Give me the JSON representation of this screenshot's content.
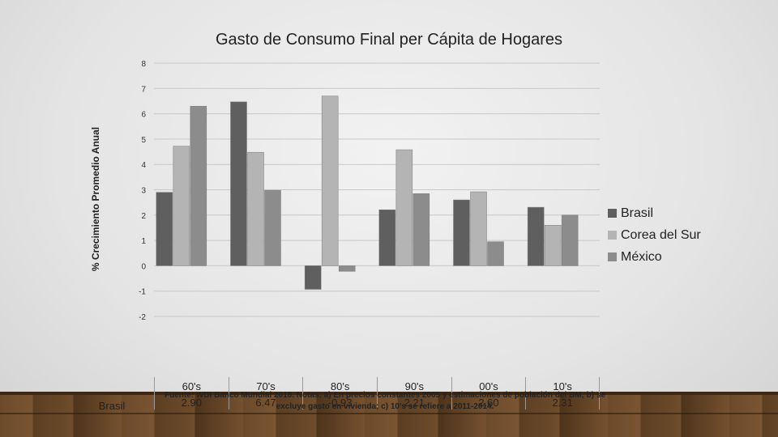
{
  "chart_data": {
    "type": "bar",
    "title": "Gasto de Consumo Final per Cápita de Hogares",
    "ylabel": "% Crecimiento Promedio Anual",
    "xlabel": "",
    "categories": [
      "60's",
      "70's",
      "80's",
      "90's",
      "00's",
      "10's"
    ],
    "ylim": [
      -2,
      8
    ],
    "yticks": [
      -2,
      -1,
      0,
      1,
      2,
      3,
      4,
      5,
      6,
      7,
      8
    ],
    "grid": true,
    "legend_position": "right",
    "series": [
      {
        "name": "Brasil",
        "color": "#5f5f5f",
        "values": [
          2.9,
          6.47,
          -0.93,
          2.21,
          2.6,
          2.31
        ]
      },
      {
        "name": "Corea del Sur",
        "color": "#b4b4b4",
        "values": [
          4.72,
          4.48,
          6.7,
          4.58,
          2.92,
          1.6
        ]
      },
      {
        "name": "México",
        "color": "#8c8c8c",
        "values": [
          6.3,
          2.98,
          -0.22,
          2.85,
          0.95,
          2.0
        ]
      }
    ],
    "table": {
      "row_label": "Brasil",
      "values": [
        "2.90",
        "6.47",
        "-0.93",
        "2.21",
        "2.60",
        "2.31"
      ]
    }
  },
  "footnote": {
    "line1": "Fuente: WDI Banco Mundial 2018. Notas: a) En precios constantes 2005 y estimaciones de población del BM; b) se",
    "line2": "excluye gasto en vivienda; c) 10's se refiere a 2011-2014."
  }
}
